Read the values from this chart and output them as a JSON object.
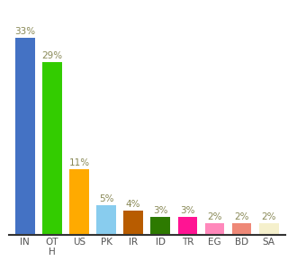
{
  "categories": [
    "IN",
    "OT\nH",
    "US",
    "PK",
    "IR",
    "ID",
    "TR",
    "EG",
    "BD",
    "SA"
  ],
  "values": [
    33,
    29,
    11,
    5,
    4,
    3,
    3,
    2,
    2,
    2
  ],
  "bar_colors": [
    "#4472c4",
    "#33cc00",
    "#ffaa00",
    "#88ccee",
    "#b85c00",
    "#2d7a00",
    "#ff1493",
    "#ff88bb",
    "#ee8877",
    "#f5f0cc"
  ],
  "ylim": [
    0,
    38
  ],
  "background_color": "#ffffff",
  "label_fontsize": 7.5,
  "tick_fontsize": 7.5,
  "bar_width": 0.72
}
